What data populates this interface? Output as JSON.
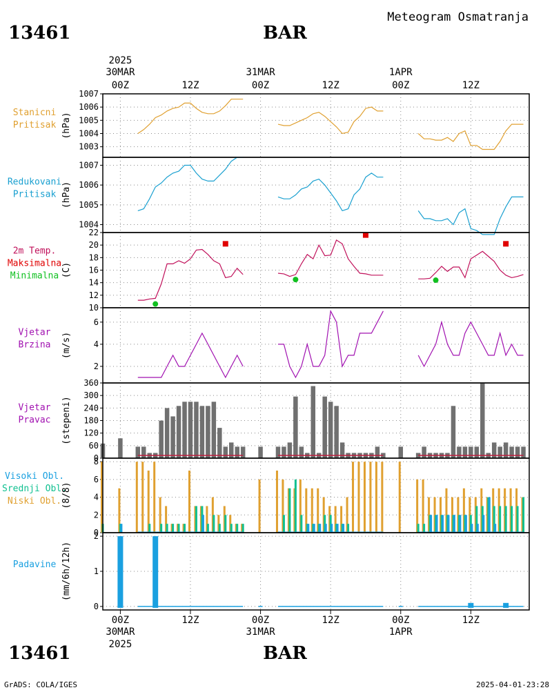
{
  "header": {
    "station_id": "13461",
    "station_name": "BAR",
    "title": "Meteogram Osmatranja",
    "footer_left": "GrADS: COLA/IGES",
    "footer_right": "2025-04-01-23:28"
  },
  "time_axis": {
    "top_labels": [
      {
        "t": 0,
        "l1": "2025",
        "l2": "30MAR",
        "l3": "00Z"
      },
      {
        "t": 12,
        "l1": "",
        "l2": "",
        "l3": "12Z"
      },
      {
        "t": 24,
        "l1": "",
        "l2": "31MAR",
        "l3": "00Z"
      },
      {
        "t": 36,
        "l1": "",
        "l2": "",
        "l3": "12Z"
      },
      {
        "t": 48,
        "l1": "",
        "l2": "1APR",
        "l3": "00Z"
      },
      {
        "t": 60,
        "l1": "",
        "l2": "",
        "l3": "12Z"
      }
    ],
    "bottom_labels": [
      {
        "t": 0,
        "l1": "00Z",
        "l2": "30MAR",
        "l3": "2025"
      },
      {
        "t": 12,
        "l1": "12Z",
        "l2": "",
        "l3": ""
      },
      {
        "t": 24,
        "l1": "00Z",
        "l2": "31MAR",
        "l3": ""
      },
      {
        "t": 36,
        "l1": "12Z",
        "l2": "",
        "l3": ""
      },
      {
        "t": 48,
        "l1": "00Z",
        "l2": "1APR",
        "l3": ""
      },
      {
        "t": 60,
        "l1": "12Z",
        "l2": "",
        "l3": ""
      }
    ],
    "t_min": -3,
    "t_max": 70
  },
  "colors": {
    "station_pressure": "#e0a030",
    "reduced_pressure": "#1aa0d0",
    "temperature": "#c0105a",
    "t_max": "#e00000",
    "t_min": "#10c020",
    "wind": "#a010b0",
    "wind_dir": "#707070",
    "high_cloud": "#1aa0e0",
    "mid_cloud": "#10c090",
    "low_cloud": "#e0a030",
    "precip": "#1aa0e0"
  },
  "chart_data": [
    {
      "type": "line",
      "id": "station_pressure",
      "label_lines": [
        "Stanicni",
        "Pritisak"
      ],
      "ylabel": "(hPa)",
      "ylim": [
        1002.2,
        1007
      ],
      "yticks": [
        1003,
        1004,
        1005,
        1006,
        1007
      ],
      "segments": [
        {
          "x": [
            3,
            4,
            5,
            6,
            7,
            8,
            9,
            10,
            11,
            12,
            13,
            14,
            15,
            16,
            17,
            18,
            19,
            20,
            21
          ],
          "values": [
            1004.0,
            1004.3,
            1004.7,
            1005.2,
            1005.4,
            1005.7,
            1005.9,
            1006.0,
            1006.3,
            1006.3,
            1005.9,
            1005.6,
            1005.5,
            1005.5,
            1005.7,
            1006.1,
            1006.6,
            1006.6,
            1006.6
          ]
        },
        {
          "x": [
            27,
            28,
            29,
            30,
            31,
            32,
            33,
            34,
            35,
            36,
            37,
            38,
            39,
            40,
            41,
            42,
            43,
            44,
            45
          ],
          "values": [
            1004.7,
            1004.6,
            1004.6,
            1004.8,
            1005.0,
            1005.2,
            1005.5,
            1005.6,
            1005.3,
            1004.9,
            1004.5,
            1004.0,
            1004.1,
            1004.9,
            1005.3,
            1005.9,
            1006.0,
            1005.7,
            1005.7
          ]
        },
        {
          "x": [
            51,
            52,
            53,
            54,
            55,
            56,
            57,
            58,
            59,
            60,
            61,
            62,
            63,
            64,
            65,
            66,
            67,
            68,
            69
          ],
          "values": [
            1004.0,
            1003.6,
            1003.6,
            1003.5,
            1003.5,
            1003.7,
            1003.4,
            1004.0,
            1004.2,
            1003.1,
            1003.1,
            1002.8,
            1002.8,
            1002.8,
            1003.4,
            1004.2,
            1004.7,
            1004.7,
            1004.7
          ]
        }
      ]
    },
    {
      "type": "line",
      "id": "reduced_pressure",
      "label_lines": [
        "Redukovani",
        "Pritisak"
      ],
      "ylabel": "(hPa)",
      "ylim": [
        1003.6,
        1007.4
      ],
      "yticks": [
        1004,
        1005,
        1006,
        1007
      ],
      "segments": [
        {
          "x": [
            3,
            4,
            5,
            6,
            7,
            8,
            9,
            10,
            11,
            12,
            13,
            14,
            15,
            16,
            17,
            18,
            19,
            20,
            21
          ],
          "values": [
            1004.7,
            1004.8,
            1005.3,
            1005.9,
            1006.1,
            1006.4,
            1006.6,
            1006.7,
            1007.0,
            1007.0,
            1006.6,
            1006.3,
            1006.2,
            1006.2,
            1006.5,
            1006.8,
            1007.2,
            1007.4,
            1007.4
          ]
        },
        {
          "x": [
            27,
            28,
            29,
            30,
            31,
            32,
            33,
            34,
            35,
            36,
            37,
            38,
            39,
            40,
            41,
            42,
            43,
            44,
            45
          ],
          "values": [
            1005.4,
            1005.3,
            1005.3,
            1005.5,
            1005.8,
            1005.9,
            1006.2,
            1006.3,
            1006.0,
            1005.6,
            1005.2,
            1004.7,
            1004.8,
            1005.5,
            1005.8,
            1006.4,
            1006.6,
            1006.4,
            1006.4
          ]
        },
        {
          "x": [
            51,
            52,
            53,
            54,
            55,
            56,
            57,
            58,
            59,
            60,
            61,
            62,
            63,
            64,
            65,
            66,
            67,
            68,
            69
          ],
          "values": [
            1004.7,
            1004.3,
            1004.3,
            1004.2,
            1004.2,
            1004.3,
            1004.0,
            1004.6,
            1004.8,
            1003.8,
            1003.7,
            1003.5,
            1003.5,
            1003.5,
            1004.3,
            1004.9,
            1005.4,
            1005.4,
            1005.4
          ]
        }
      ]
    },
    {
      "type": "line",
      "id": "temperature",
      "label_lines": [
        "2m Temp.",
        "Maksimalna",
        "Minimalna"
      ],
      "ylabel": "(C)",
      "ylim": [
        10,
        22
      ],
      "yticks": [
        10,
        12,
        14,
        16,
        18,
        20,
        22
      ],
      "segments": [
        {
          "x": [
            3,
            4,
            5,
            6,
            7,
            8,
            9,
            10,
            11,
            12,
            13,
            14,
            15,
            16,
            17,
            18,
            19,
            20,
            21
          ],
          "values": [
            11.2,
            11.2,
            11.4,
            11.5,
            13.8,
            17.0,
            17.0,
            17.5,
            17.1,
            17.8,
            19.2,
            19.3,
            18.5,
            17.5,
            17.0,
            14.8,
            15.0,
            16.3,
            15.3
          ]
        },
        {
          "x": [
            27,
            28,
            29,
            30,
            31,
            32,
            33,
            34,
            35,
            36,
            37,
            38,
            39,
            40,
            41,
            42,
            43,
            44,
            45
          ],
          "values": [
            15.5,
            15.4,
            15.0,
            15.3,
            17.0,
            18.5,
            17.8,
            20.0,
            18.3,
            18.4,
            20.8,
            20.2,
            17.8,
            16.6,
            15.5,
            15.4,
            15.2,
            15.2,
            15.2
          ]
        },
        {
          "x": [
            51,
            52,
            53,
            54,
            55,
            56,
            57,
            58,
            59,
            60,
            61,
            62,
            63,
            64,
            65,
            66,
            67,
            68,
            69
          ],
          "values": [
            14.6,
            14.6,
            14.7,
            15.6,
            16.6,
            15.8,
            16.5,
            16.5,
            14.8,
            17.8,
            18.4,
            19.0,
            18.2,
            17.4,
            16.0,
            15.2,
            14.8,
            15.0,
            15.3
          ]
        }
      ],
      "max_markers": [
        {
          "x": 18,
          "value": 20.2
        },
        {
          "x": 42,
          "value": 21.6
        },
        {
          "x": 66,
          "value": 20.2
        }
      ],
      "min_markers": [
        {
          "x": 6,
          "value": 10.6
        },
        {
          "x": 30,
          "value": 14.5
        },
        {
          "x": 54,
          "value": 14.4
        }
      ]
    },
    {
      "type": "line",
      "id": "wind_speed",
      "label_lines": [
        "Vjetar",
        "Brzina"
      ],
      "ylabel": "(m/s)",
      "ylim": [
        0.5,
        7.3
      ],
      "yticks": [
        2,
        4,
        6
      ],
      "segments": [
        {
          "x": [
            3,
            4,
            5,
            6,
            7,
            8,
            9,
            10,
            11,
            12,
            13,
            14,
            15,
            16,
            17,
            18,
            19,
            20,
            21
          ],
          "values": [
            1,
            1,
            1,
            1,
            1,
            2,
            3,
            2,
            2,
            3,
            4,
            5,
            4,
            3,
            2,
            1,
            2,
            3,
            2
          ]
        },
        {
          "x": [
            27,
            28,
            29,
            30,
            31,
            32,
            33,
            34,
            35,
            36,
            37,
            38,
            39,
            40,
            41,
            42,
            43,
            44,
            45
          ],
          "values": [
            4,
            4,
            2,
            1,
            2,
            4,
            2,
            2,
            3,
            7,
            6,
            2,
            3,
            3,
            5,
            5,
            5,
            6,
            7
          ]
        },
        {
          "x": [
            51,
            52,
            53,
            54,
            55,
            56,
            57,
            58,
            59,
            60,
            61,
            62,
            63,
            64,
            65,
            66,
            67,
            68,
            69
          ],
          "values": [
            3,
            2,
            3,
            4,
            6,
            4,
            3,
            3,
            5,
            6,
            5,
            4,
            3,
            3,
            5,
            3,
            4,
            3,
            3
          ]
        }
      ]
    },
    {
      "type": "bar",
      "id": "wind_direction",
      "label_lines": [
        "Vjetar",
        "Pravac"
      ],
      "ylabel": "(stepeni)",
      "ylim": [
        0,
        360
      ],
      "yticks": [
        0,
        60,
        120,
        180,
        240,
        300,
        360
      ],
      "x": [
        -3,
        0,
        3,
        4,
        5,
        6,
        7,
        8,
        9,
        10,
        11,
        12,
        13,
        14,
        15,
        16,
        17,
        18,
        19,
        20,
        21,
        24,
        27,
        28,
        29,
        30,
        31,
        32,
        33,
        34,
        35,
        36,
        37,
        38,
        39,
        40,
        41,
        42,
        43,
        44,
        45,
        48,
        51,
        52,
        53,
        54,
        55,
        56,
        57,
        58,
        59,
        60,
        61,
        62,
        63,
        64,
        65,
        66,
        67,
        68,
        69
      ],
      "values": [
        70,
        95,
        55,
        55,
        25,
        25,
        180,
        240,
        200,
        250,
        270,
        270,
        270,
        250,
        250,
        270,
        145,
        55,
        75,
        55,
        55,
        55,
        55,
        55,
        75,
        295,
        55,
        25,
        345,
        25,
        295,
        270,
        250,
        75,
        25,
        25,
        25,
        25,
        25,
        55,
        25,
        55,
        25,
        55,
        25,
        25,
        25,
        25,
        250,
        55,
        55,
        55,
        55,
        360,
        25,
        75,
        55,
        75,
        55,
        55,
        55
      ]
    },
    {
      "type": "bar",
      "id": "clouds",
      "label_lines": [
        "Visoki Obl.",
        "Srednji Obl.",
        "Niski Obl."
      ],
      "ylabel": "(8/8)",
      "ylim": [
        0,
        8.4
      ],
      "yticks": [
        0,
        2,
        4,
        6,
        8
      ],
      "x": [
        -3,
        0,
        3,
        4,
        5,
        6,
        7,
        8,
        9,
        10,
        11,
        12,
        13,
        14,
        15,
        16,
        17,
        18,
        19,
        20,
        21,
        24,
        27,
        28,
        29,
        30,
        31,
        32,
        33,
        34,
        35,
        36,
        37,
        38,
        39,
        40,
        41,
        42,
        43,
        44,
        45,
        48,
        51,
        52,
        53,
        54,
        55,
        56,
        57,
        58,
        59,
        60,
        61,
        62,
        63,
        64,
        65,
        66,
        67,
        68,
        69
      ],
      "series": [
        {
          "name": "Niski Obl.",
          "values": [
            8,
            5,
            8,
            8,
            7,
            8,
            4,
            3,
            1,
            1,
            1,
            7,
            3,
            3,
            3,
            4,
            2,
            3,
            2,
            1,
            1,
            6,
            7,
            6,
            5,
            5,
            6,
            5,
            5,
            5,
            4,
            3,
            3,
            3,
            4,
            8,
            8,
            8,
            8,
            8,
            8,
            8,
            6,
            6,
            4,
            4,
            4,
            5,
            4,
            4,
            5,
            4,
            4,
            5,
            4,
            5,
            5,
            5,
            5,
            5,
            4
          ]
        },
        {
          "name": "Srednji Obl.",
          "values": [
            1,
            1,
            0,
            0,
            1,
            0,
            1,
            1,
            1,
            1,
            1,
            0,
            3,
            3,
            1,
            2,
            1,
            2,
            1,
            1,
            1,
            0,
            0,
            2,
            5,
            6,
            2,
            1,
            1,
            1,
            2,
            2,
            1,
            1,
            1,
            0,
            0,
            0,
            0,
            0,
            0,
            0,
            1,
            1,
            2,
            2,
            2,
            2,
            2,
            2,
            2,
            2,
            3,
            3,
            4,
            3,
            3,
            3,
            3,
            3,
            4
          ]
        },
        {
          "name": "Visoki Obl.",
          "values": [
            0,
            1,
            0,
            0,
            0,
            0,
            0,
            0,
            0,
            0,
            0,
            0,
            0,
            2,
            0,
            0,
            0,
            0,
            0,
            0,
            0,
            0,
            0,
            0,
            0,
            0,
            0,
            1,
            1,
            1,
            1,
            1,
            1,
            1,
            0,
            0,
            0,
            0,
            0,
            0,
            0,
            0,
            0,
            0,
            2,
            2,
            2,
            2,
            2,
            2,
            2,
            1,
            1,
            2,
            4,
            1,
            0,
            0,
            0,
            0,
            0
          ]
        }
      ]
    },
    {
      "type": "bar",
      "id": "precipitation",
      "label_lines": [
        "Padavine"
      ],
      "ylabel": "(mm/6h/12h)",
      "ylim": [
        -0.1,
        2.1
      ],
      "yticks": [
        0,
        1,
        2
      ],
      "x": [
        0,
        6,
        60,
        66
      ],
      "values": [
        2.0,
        2.0,
        0.1,
        0.1
      ],
      "trace_ranges": [
        [
          3,
          21
        ],
        [
          27,
          45
        ],
        [
          51,
          69
        ]
      ]
    }
  ]
}
